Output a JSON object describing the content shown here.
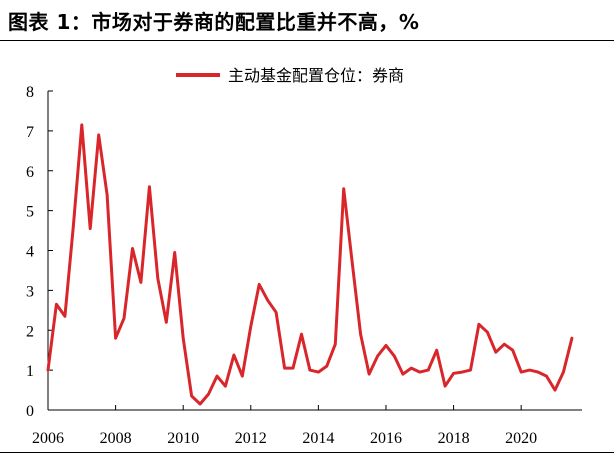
{
  "figure_title": "图表 1：市场对于券商的配置比重并不高，%",
  "chart_data": {
    "type": "line",
    "title": "",
    "xlabel": "",
    "ylabel": "",
    "xlim": [
      2006,
      2021.8
    ],
    "ylim": [
      0,
      8
    ],
    "x_ticks": [
      "2006",
      "2008",
      "2010",
      "2012",
      "2014",
      "2016",
      "2018",
      "2020"
    ],
    "y_ticks": [
      "0",
      "1",
      "2",
      "3",
      "4",
      "5",
      "6",
      "7",
      "8"
    ],
    "grid": false,
    "legend_position": "top-center",
    "color": "#d9262a",
    "series": [
      {
        "name": "主动基金配置仓位：券商",
        "x": [
          2006.0,
          2006.25,
          2006.5,
          2006.75,
          2007.0,
          2007.25,
          2007.5,
          2007.75,
          2008.0,
          2008.25,
          2008.5,
          2008.75,
          2009.0,
          2009.25,
          2009.5,
          2009.75,
          2010.0,
          2010.25,
          2010.5,
          2010.75,
          2011.0,
          2011.25,
          2011.5,
          2011.75,
          2012.0,
          2012.25,
          2012.5,
          2012.75,
          2013.0,
          2013.25,
          2013.5,
          2013.75,
          2014.0,
          2014.25,
          2014.5,
          2014.75,
          2015.0,
          2015.25,
          2015.5,
          2015.75,
          2016.0,
          2016.25,
          2016.5,
          2016.75,
          2017.0,
          2017.25,
          2017.5,
          2017.75,
          2018.0,
          2018.25,
          2018.5,
          2018.75,
          2019.0,
          2019.25,
          2019.5,
          2019.75,
          2020.0,
          2020.25,
          2020.5,
          2020.75,
          2021.0,
          2021.25,
          2021.5
        ],
        "y": [
          1.0,
          2.65,
          2.35,
          4.6,
          7.15,
          4.55,
          6.9,
          5.4,
          1.8,
          2.3,
          4.05,
          3.2,
          5.6,
          3.3,
          2.2,
          3.95,
          1.8,
          0.35,
          0.15,
          0.4,
          0.85,
          0.6,
          1.38,
          0.85,
          2.1,
          3.15,
          2.75,
          2.45,
          1.05,
          1.05,
          1.9,
          1.0,
          0.95,
          1.1,
          1.65,
          5.55,
          3.7,
          1.9,
          0.9,
          1.35,
          1.62,
          1.35,
          0.9,
          1.05,
          0.95,
          1.0,
          1.5,
          0.6,
          0.92,
          0.95,
          1.0,
          2.15,
          1.95,
          1.45,
          1.65,
          1.5,
          0.95,
          1.0,
          0.95,
          0.85,
          0.5,
          0.95,
          1.8
        ]
      }
    ]
  }
}
